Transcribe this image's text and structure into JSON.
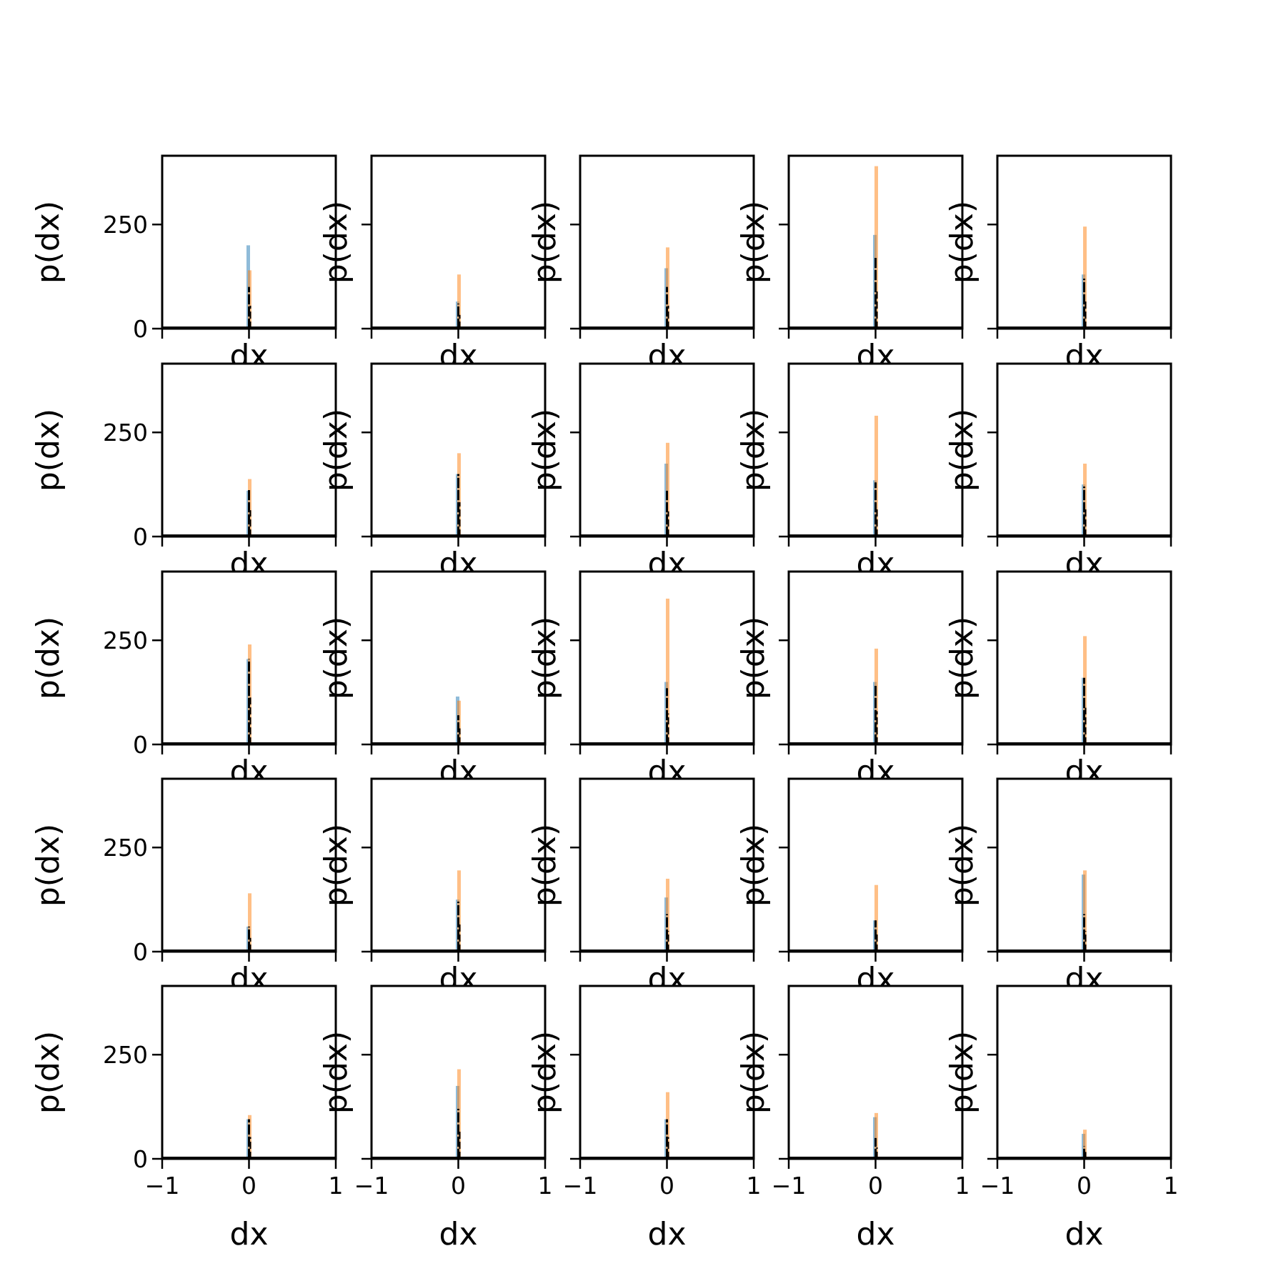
{
  "chart_data": {
    "type": "bar",
    "layout": "5x5 grid of histograms",
    "xlabel": "dx",
    "ylabel": "p(dx)",
    "xlim": [
      -1,
      1
    ],
    "ylim": [
      0,
      415
    ],
    "xticks": [
      -1,
      0,
      1
    ],
    "yticks": [
      0,
      250
    ],
    "xtick_labels": [
      "−1",
      "0",
      "1"
    ],
    "ytick_labels": [
      "0",
      "250"
    ],
    "colors": {
      "series_a": "#1f77b4",
      "series_b": "#ff7f0e",
      "outline": "#000000",
      "frame": "#000000"
    },
    "panels": [
      {
        "row": 1,
        "col": 1,
        "series_a_peak": 200,
        "series_b_peak": 140,
        "outline_peak": 100
      },
      {
        "row": 1,
        "col": 2,
        "series_a_peak": 65,
        "series_b_peak": 130,
        "outline_peak": 60
      },
      {
        "row": 1,
        "col": 3,
        "series_a_peak": 145,
        "series_b_peak": 195,
        "outline_peak": 100
      },
      {
        "row": 1,
        "col": 4,
        "series_a_peak": 225,
        "series_b_peak": 390,
        "outline_peak": 170
      },
      {
        "row": 1,
        "col": 5,
        "series_a_peak": 130,
        "series_b_peak": 245,
        "outline_peak": 120
      },
      {
        "row": 2,
        "col": 1,
        "series_a_peak": 110,
        "series_b_peak": 138,
        "outline_peak": 115
      },
      {
        "row": 2,
        "col": 2,
        "series_a_peak": 150,
        "series_b_peak": 200,
        "outline_peak": 150
      },
      {
        "row": 2,
        "col": 3,
        "series_a_peak": 175,
        "series_b_peak": 225,
        "outline_peak": 110
      },
      {
        "row": 2,
        "col": 4,
        "series_a_peak": 135,
        "series_b_peak": 290,
        "outline_peak": 130
      },
      {
        "row": 2,
        "col": 5,
        "series_a_peak": 125,
        "series_b_peak": 175,
        "outline_peak": 120
      },
      {
        "row": 3,
        "col": 1,
        "series_a_peak": 205,
        "series_b_peak": 240,
        "outline_peak": 205
      },
      {
        "row": 3,
        "col": 2,
        "series_a_peak": 115,
        "series_b_peak": 105,
        "outline_peak": 70
      },
      {
        "row": 3,
        "col": 3,
        "series_a_peak": 150,
        "series_b_peak": 350,
        "outline_peak": 135
      },
      {
        "row": 3,
        "col": 4,
        "series_a_peak": 150,
        "series_b_peak": 230,
        "outline_peak": 145
      },
      {
        "row": 3,
        "col": 5,
        "series_a_peak": 160,
        "series_b_peak": 260,
        "outline_peak": 160
      },
      {
        "row": 4,
        "col": 1,
        "series_a_peak": 60,
        "series_b_peak": 140,
        "outline_peak": 60
      },
      {
        "row": 4,
        "col": 2,
        "series_a_peak": 125,
        "series_b_peak": 195,
        "outline_peak": 120
      },
      {
        "row": 4,
        "col": 3,
        "series_a_peak": 130,
        "series_b_peak": 175,
        "outline_peak": 90
      },
      {
        "row": 4,
        "col": 4,
        "series_a_peak": 75,
        "series_b_peak": 160,
        "outline_peak": 75
      },
      {
        "row": 4,
        "col": 5,
        "series_a_peak": 185,
        "series_b_peak": 195,
        "outline_peak": 90
      },
      {
        "row": 5,
        "col": 1,
        "series_a_peak": 95,
        "series_b_peak": 105,
        "outline_peak": 95
      },
      {
        "row": 5,
        "col": 2,
        "series_a_peak": 175,
        "series_b_peak": 215,
        "outline_peak": 120
      },
      {
        "row": 5,
        "col": 3,
        "series_a_peak": 95,
        "series_b_peak": 160,
        "outline_peak": 95
      },
      {
        "row": 5,
        "col": 4,
        "series_a_peak": 100,
        "series_b_peak": 110,
        "outline_peak": 50
      },
      {
        "row": 5,
        "col": 5,
        "series_a_peak": 60,
        "series_b_peak": 70,
        "outline_peak": 30
      }
    ]
  }
}
